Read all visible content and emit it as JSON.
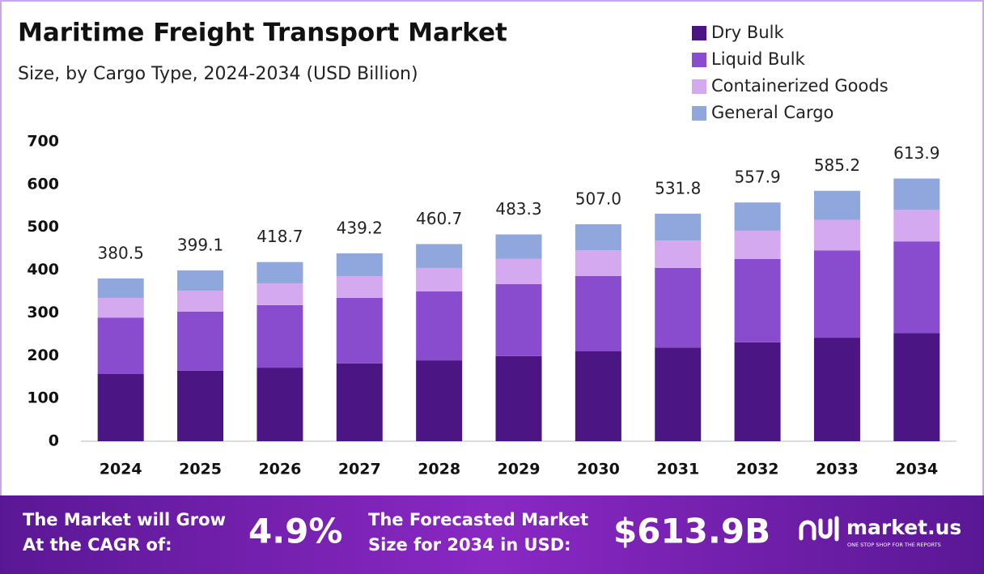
{
  "chart_data": {
    "type": "stacked_bar",
    "title": "Maritime Freight Transport Market",
    "subtitle": "Size, by Cargo Type, 2024-2034 (USD Billion)",
    "categories": [
      "2024",
      "2025",
      "2026",
      "2027",
      "2028",
      "2029",
      "2030",
      "2031",
      "2032",
      "2033",
      "2034"
    ],
    "series": [
      {
        "name": "Dry Bulk",
        "color": "#4b1684",
        "values": [
          157,
          165,
          172,
          182,
          189,
          199,
          210,
          219,
          231,
          242,
          253
        ]
      },
      {
        "name": "Liquid Bulk",
        "color": "#8a4ccf",
        "values": [
          132,
          138,
          146,
          153,
          161,
          168,
          176,
          186,
          195,
          204,
          214
        ]
      },
      {
        "name": "Containerized Goods",
        "color": "#d5a9ef",
        "values": [
          46,
          49,
          51,
          51,
          55,
          59,
          60,
          64,
          66,
          71,
          74
        ]
      },
      {
        "name": "General Cargo",
        "color": "#8fa7dc",
        "values": [
          45.5,
          47.1,
          49.7,
          53.2,
          55.7,
          57.3,
          61,
          62.8,
          65.9,
          68.2,
          72.9
        ]
      }
    ],
    "totals": [
      380.5,
      399.1,
      418.7,
      439.2,
      460.7,
      483.3,
      507.0,
      531.8,
      557.9,
      585.2,
      613.9
    ],
    "total_labels": [
      "380.5",
      "399.1",
      "418.7",
      "439.2",
      "460.7",
      "483.3",
      "507.0",
      "531.8",
      "557.9",
      "585.2",
      "613.9"
    ],
    "ylim": [
      0,
      700
    ],
    "yticks": [
      0,
      100,
      200,
      300,
      400,
      500,
      600,
      700
    ]
  },
  "banner": {
    "cagr_text": [
      "The Market will Grow",
      "At the CAGR of:"
    ],
    "cagr_value": "4.9%",
    "forecast_text": [
      "The Forecasted Market",
      "Size for 2034 in USD:"
    ],
    "forecast_value": "$613.9B",
    "brand": "market.us",
    "tagline": "ONE STOP SHOP FOR THE REPORTS"
  }
}
